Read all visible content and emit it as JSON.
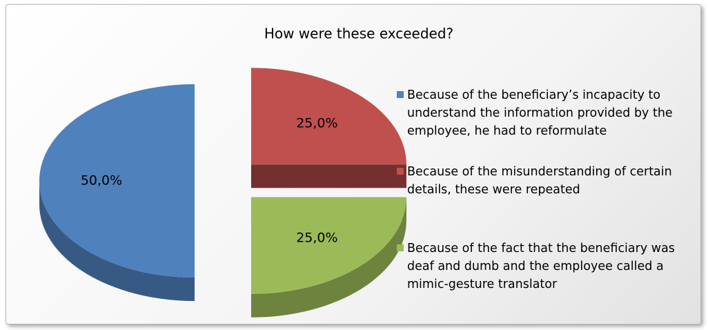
{
  "chart_data": {
    "type": "pie",
    "title": "How were these exceeded?",
    "categories": [
      "Because of the beneficiary’s incapacity to understand the information provided by the employee, he had to reformulate",
      "Because of the misunderstanding of certain details, these were repeated",
      "Because of the fact that the beneficiary was deaf and dumb and the employee called a mimic-gesture translator"
    ],
    "values": [
      50,
      25,
      25
    ],
    "value_labels": [
      "50,0%",
      "25,0%",
      "25,0%"
    ],
    "colors": [
      "#4f81bd",
      "#c0504d",
      "#9bbb59"
    ],
    "legend": "right"
  }
}
